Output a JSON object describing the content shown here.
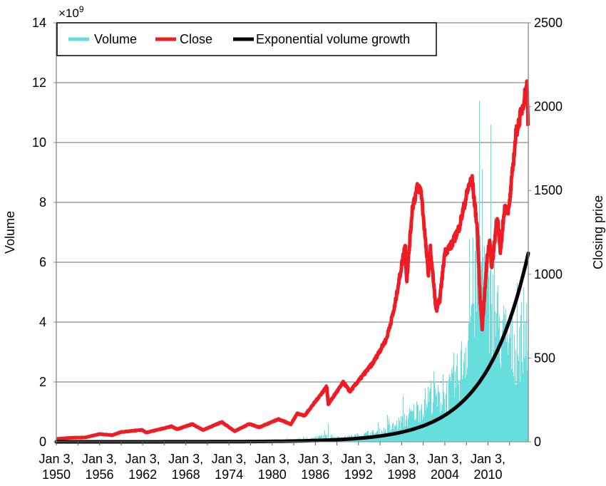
{
  "chart_data": {
    "type": "bar+line",
    "title": "",
    "xlabel": "",
    "ylabel_left": "Volume",
    "ylabel_right": "Closing price",
    "left_multiplier_label": "×10",
    "left_multiplier_exp": "9",
    "xlim": [
      1950,
      2015.6
    ],
    "ylim_left": [
      0,
      14
    ],
    "ylim_right": [
      0,
      2500
    ],
    "grid": true,
    "legend_placement": "top-left",
    "yticks_left": [
      "0",
      "2",
      "4",
      "6",
      "8",
      "10",
      "12",
      "14"
    ],
    "yticks_right": [
      "0",
      "500",
      "1000",
      "1500",
      "2000",
      "2500"
    ],
    "xticks": [
      {
        "year": 1950,
        "line1": "Jan 3,",
        "line2": "1950"
      },
      {
        "year": 1956,
        "line1": "Jan 3,",
        "line2": "1956"
      },
      {
        "year": 1962,
        "line1": "Jan 3,",
        "line2": "1962"
      },
      {
        "year": 1968,
        "line1": "Jan 3,",
        "line2": "1968"
      },
      {
        "year": 1974,
        "line1": "Jan 3,",
        "line2": "1974"
      },
      {
        "year": 1980,
        "line1": "Jan 3,",
        "line2": "1980"
      },
      {
        "year": 1986,
        "line1": "Jan 3,",
        "line2": "1986"
      },
      {
        "year": 1992,
        "line1": "Jan 3,",
        "line2": "1992"
      },
      {
        "year": 1998,
        "line1": "Jan 3,",
        "line2": "1998"
      },
      {
        "year": 2004,
        "line1": "Jan 3,",
        "line2": "2004"
      },
      {
        "year": 2010,
        "line1": "Jan 3,",
        "line2": "2010"
      }
    ],
    "series": [
      {
        "name": "Volume",
        "type": "bar",
        "axis": "left",
        "unit": "1e9",
        "color": "#66dede",
        "points": [
          [
            1950,
            0.002
          ],
          [
            1970,
            0.01
          ],
          [
            1980,
            0.04
          ],
          [
            1985,
            0.1
          ],
          [
            1987,
            0.2
          ],
          [
            1990,
            0.15
          ],
          [
            1995,
            0.35
          ],
          [
            1997,
            0.55
          ],
          [
            1999,
            0.9
          ],
          [
            2000,
            1.1
          ],
          [
            2001,
            1.3
          ],
          [
            2002,
            1.7
          ],
          [
            2003,
            1.5
          ],
          [
            2004,
            1.6
          ],
          [
            2005,
            1.9
          ],
          [
            2006,
            2.4
          ],
          [
            2007,
            3.5
          ],
          [
            2008,
            5.5
          ],
          [
            2009,
            6.3
          ],
          [
            2010,
            5.0
          ],
          [
            2011,
            4.5
          ],
          [
            2012,
            3.8
          ],
          [
            2013,
            3.5
          ],
          [
            2014,
            3.3
          ],
          [
            2015,
            4.0
          ],
          [
            2015.6,
            4.2
          ]
        ],
        "spikes": [
          [
            1987.8,
            0.6
          ],
          [
            2008.8,
            11.4
          ],
          [
            2009.2,
            9.1
          ],
          [
            2010.4,
            10.6
          ]
        ]
      },
      {
        "name": "Close",
        "type": "line",
        "axis": "right",
        "color": "#ee1c24",
        "points": [
          [
            1950,
            17
          ],
          [
            1952,
            24
          ],
          [
            1954,
            26
          ],
          [
            1956,
            46
          ],
          [
            1957.8,
            40
          ],
          [
            1959,
            58
          ],
          [
            1961.9,
            71
          ],
          [
            1962.5,
            55
          ],
          [
            1966,
            92
          ],
          [
            1966.8,
            75
          ],
          [
            1968.9,
            106
          ],
          [
            1970.4,
            70
          ],
          [
            1973,
            118
          ],
          [
            1974.8,
            63
          ],
          [
            1976.8,
            107
          ],
          [
            1978.2,
            87
          ],
          [
            1980.9,
            135
          ],
          [
            1982.6,
            105
          ],
          [
            1983.5,
            170
          ],
          [
            1984.5,
            155
          ],
          [
            1987.6,
            330
          ],
          [
            1987.8,
            225
          ],
          [
            1989.9,
            355
          ],
          [
            1990.8,
            300
          ],
          [
            1994,
            470
          ],
          [
            1995.9,
            615
          ],
          [
            1997,
            800
          ],
          [
            1998.5,
            1180
          ],
          [
            1998.7,
            960
          ],
          [
            1999.5,
            1400
          ],
          [
            2000.2,
            1520
          ],
          [
            2000.7,
            1500
          ],
          [
            2001.7,
            1000
          ],
          [
            2002,
            1150
          ],
          [
            2002.8,
            780
          ],
          [
            2003.3,
            850
          ],
          [
            2004,
            1130
          ],
          [
            2005,
            1180
          ],
          [
            2006,
            1280
          ],
          [
            2007.4,
            1540
          ],
          [
            2007.8,
            1560
          ],
          [
            2008.5,
            1280
          ],
          [
            2008.9,
            850
          ],
          [
            2009.2,
            680
          ],
          [
            2009.9,
            1110
          ],
          [
            2010.3,
            1210
          ],
          [
            2010.5,
            1020
          ],
          [
            2011.3,
            1360
          ],
          [
            2011.7,
            1120
          ],
          [
            2012.3,
            1400
          ],
          [
            2012.9,
            1380
          ],
          [
            2013.9,
            1840
          ],
          [
            2014.8,
            2000
          ],
          [
            2015.4,
            2130
          ],
          [
            2015.6,
            1870
          ]
        ]
      },
      {
        "name": "Exponential volume growth",
        "type": "line",
        "axis": "left",
        "color": "#000000",
        "model": "exponential",
        "end_value": 6.3,
        "growth_rate_per_year": 0.169
      }
    ]
  }
}
